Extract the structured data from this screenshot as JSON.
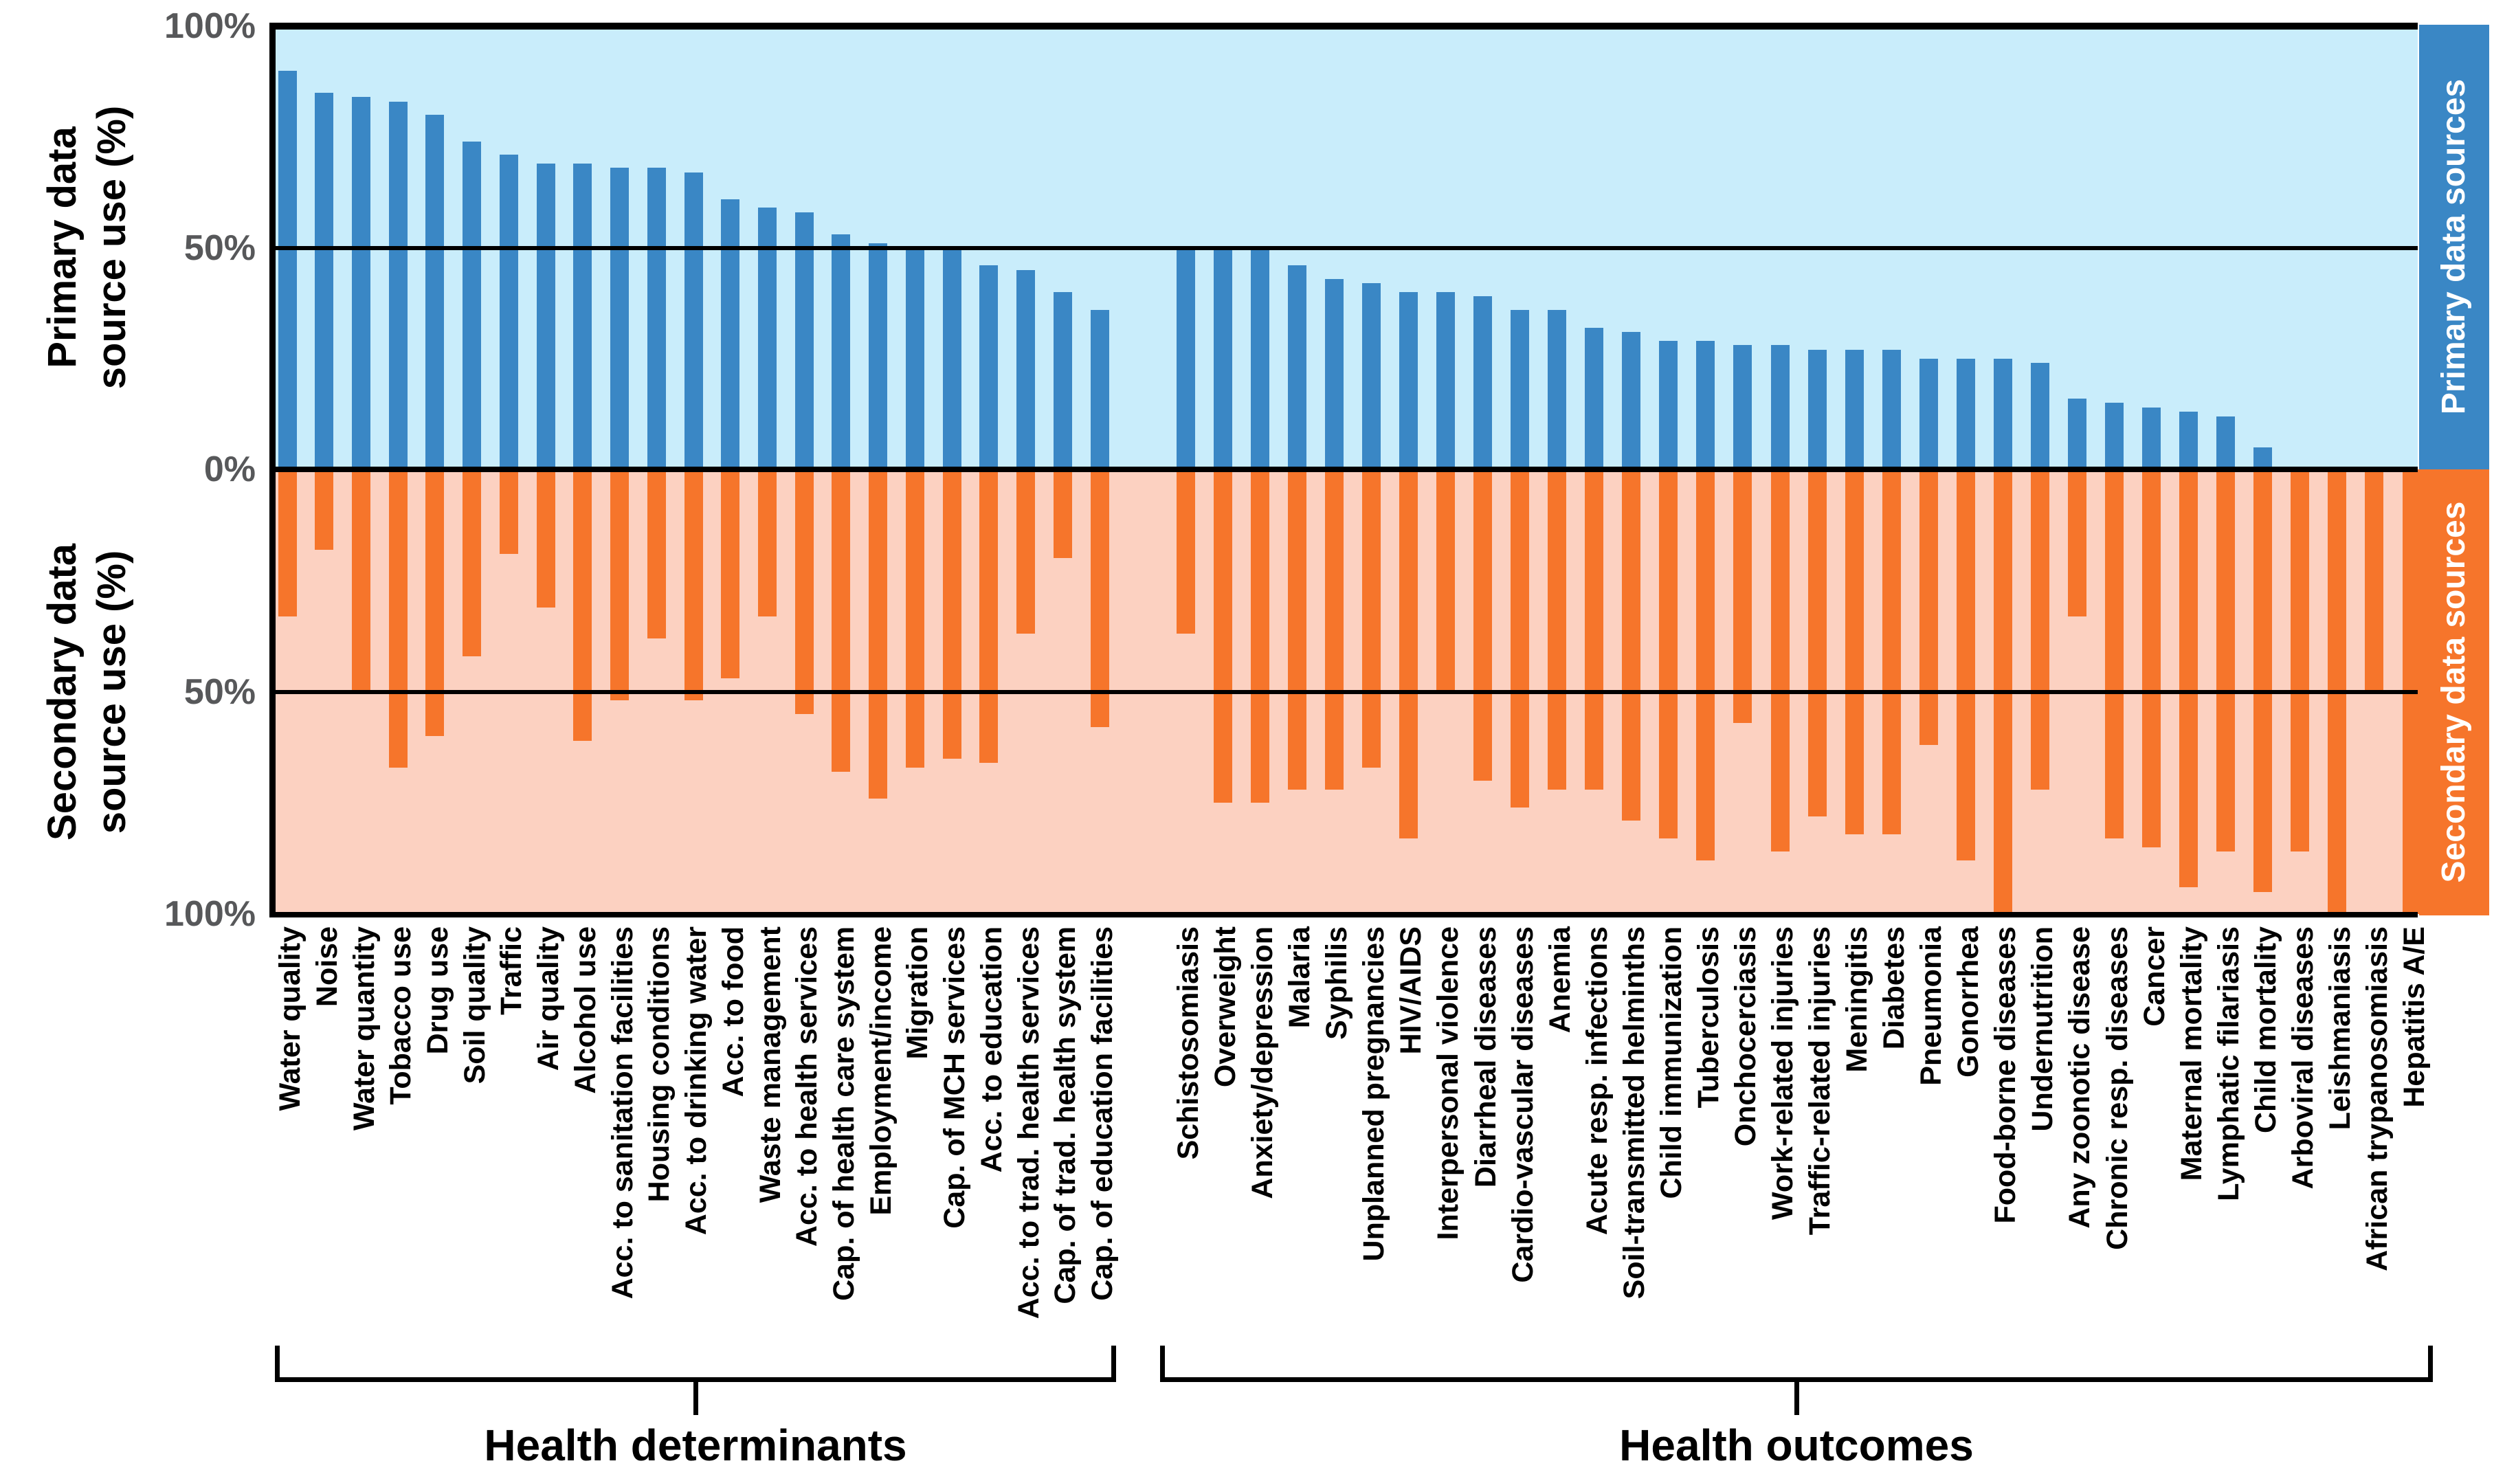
{
  "figure": {
    "primary_axis_title_lines": [
      "Primary data",
      "source use (%)"
    ],
    "secondary_axis_title_lines": [
      "Secondary data",
      "source use (%)"
    ],
    "primary_ticks": [
      "100%",
      "50%",
      "0%"
    ],
    "secondary_ticks": [
      "50%",
      "100%"
    ],
    "sidebar_primary_label": "Primary data sources",
    "sidebar_secondary_label": "Secondary data sources",
    "colors": {
      "primary_bar": "#3A87C5",
      "secondary_bar": "#F6752B",
      "primary_background": "#C9EDFB",
      "secondary_background": "#FCD1C1",
      "line": "#000000",
      "tick_text": "#57585a"
    }
  },
  "chart_data": {
    "type": "bar",
    "subtype": "diverging mirrored bar chart (primary % up in blue, secondary % down in orange)",
    "title": "",
    "ylabel_primary": "Primary data source use (%)",
    "ylabel_secondary": "Secondary data source use (%)",
    "ylim": [
      0,
      100
    ],
    "yticks_primary": [
      100,
      50,
      0
    ],
    "yticks_secondary": [
      50,
      100
    ],
    "grid": "solid black reference lines at 0% and both 50% levels",
    "legend_position": "right edge color sidebars",
    "series_names": [
      "Primary data sources",
      "Secondary data sources"
    ],
    "groups": [
      {
        "label": "Health determinants",
        "categories": [
          "Water quality",
          "Noise",
          "Water quantity",
          "Tobacco use",
          "Drug use",
          "Soil quality",
          "Traffic",
          "Air quality",
          "Alcohol use",
          "Acc. to sanitation facilities",
          "Housing conditions",
          "Acc. to drinking water",
          "Acc. to food",
          "Waste management",
          "Acc. to health services",
          "Cap. of health care system",
          "Employment/income",
          "Migration",
          "Cap. of MCH services",
          "Acc. to education",
          "Acc. to trad. health services",
          "Cap. of trad. health system",
          "Cap. of education facilities"
        ],
        "primary": [
          90,
          85,
          84,
          83,
          80,
          74,
          71,
          69,
          69,
          68,
          68,
          67,
          61,
          59,
          58,
          53,
          51,
          50,
          50,
          46,
          45,
          40,
          36
        ],
        "secondary": [
          33,
          18,
          50,
          67,
          60,
          42,
          19,
          31,
          61,
          52,
          38,
          52,
          47,
          33,
          55,
          68,
          74,
          67,
          65,
          66,
          37,
          20,
          58
        ]
      },
      {
        "label": "Health outcomes",
        "categories": [
          "Schistosomiasis",
          "Overweight",
          "Anxiety/depression",
          "Malaria",
          "Syphilis",
          "Unplanned pregnancies",
          "HIV/AIDS",
          "Interpersonal violence",
          "Diarrheal diseases",
          "Cardio-vascular diseases",
          "Anemia",
          "Acute resp. infections",
          "Soil-transmitted helminths",
          "Child immunization",
          "Tuberculosis",
          "Onchocerciasis",
          "Work-related injuries",
          "Traffic-related injuries",
          "Meningitis",
          "Diabetes",
          "Pneumonia",
          "Gonorrhea",
          "Food-borne diseases",
          "Undernutrition",
          "Any zoonotic disease",
          "Chronic resp. diseases",
          "Cancer",
          "Maternal mortality",
          "Lymphatic filariasis",
          "Child mortality",
          "Arboviral diseases",
          "Leishmaniasis",
          "African trypanosomiasis",
          "Hepatitis A/E"
        ],
        "primary": [
          50,
          50,
          50,
          46,
          43,
          42,
          40,
          40,
          39,
          36,
          36,
          32,
          31,
          29,
          29,
          28,
          28,
          27,
          27,
          27,
          25,
          25,
          25,
          24,
          16,
          15,
          14,
          13,
          12,
          5,
          0,
          0,
          0,
          0
        ],
        "secondary": [
          37,
          75,
          75,
          72,
          72,
          67,
          83,
          50,
          70,
          76,
          72,
          72,
          79,
          83,
          88,
          57,
          86,
          78,
          82,
          82,
          62,
          88,
          100,
          72,
          33,
          83,
          85,
          94,
          86,
          95,
          86,
          100,
          50,
          100
        ]
      }
    ]
  }
}
